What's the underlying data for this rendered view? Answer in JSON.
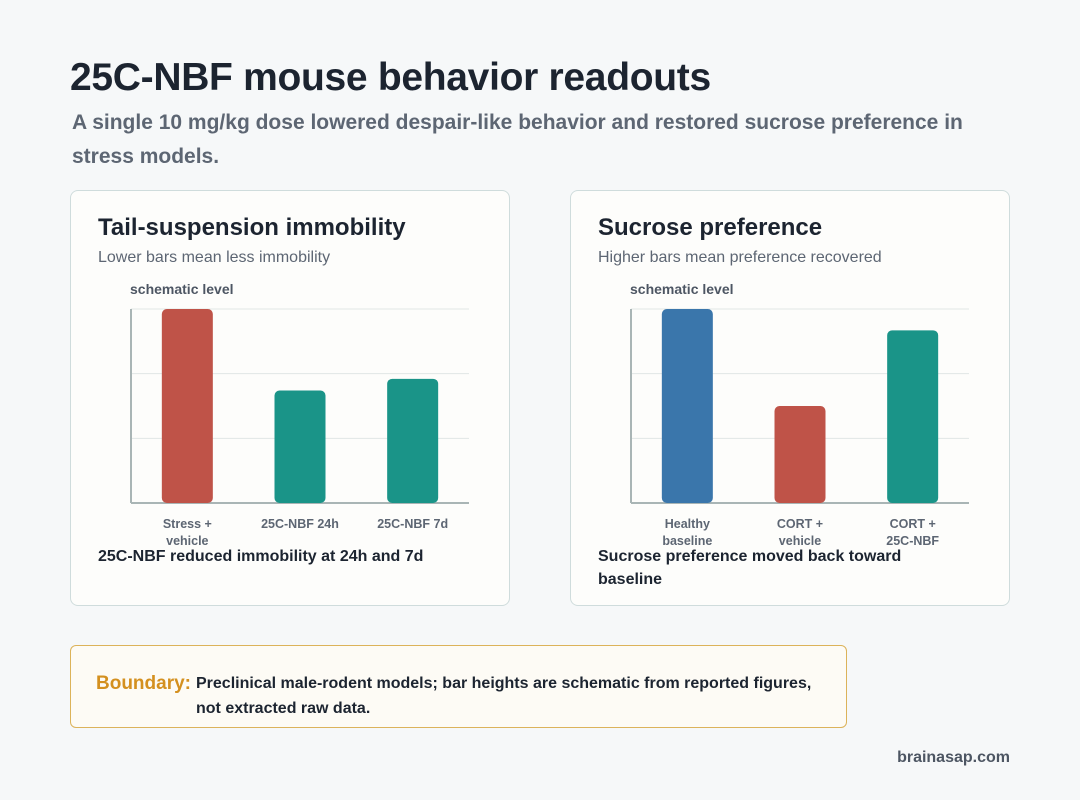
{
  "header": {
    "title": "25C-NBF mouse behavior readouts",
    "subtitle": "A single 10 mg/kg dose lowered despair-like behavior and restored sucrose preference in stress models."
  },
  "cards": [
    {
      "title": "Tail-suspension immobility",
      "subtitle": "Lower bars mean less immobility",
      "takeaway": "25C-NBF reduced immobility at 24h and 7d"
    },
    {
      "title": "Sucrose preference",
      "subtitle": "Higher bars mean preference recovered",
      "takeaway": "Sucrose preference moved back toward baseline"
    }
  ],
  "chart_data": [
    {
      "type": "bar",
      "title": "Tail-suspension immobility",
      "subtitle": "Lower bars mean less immobility",
      "ylabel": "schematic level",
      "categories": [
        "Stress + vehicle",
        "25C-NBF 24h",
        "25C-NBF 7d"
      ],
      "values": [
        100,
        58,
        64
      ],
      "colors": [
        "#bf5348",
        "#1a9488",
        "#1a9488"
      ],
      "ylim": [
        0,
        100
      ],
      "grid": true
    },
    {
      "type": "bar",
      "title": "Sucrose preference",
      "subtitle": "Higher bars mean preference recovered",
      "ylabel": "schematic level",
      "categories": [
        "Healthy baseline",
        "CORT + vehicle",
        "CORT + 25C-NBF"
      ],
      "values": [
        100,
        50,
        89
      ],
      "colors": [
        "#3a76ab",
        "#bf5348",
        "#1a9488"
      ],
      "ylim": [
        0,
        100
      ],
      "grid": true
    }
  ],
  "boundary": {
    "label": "Boundary:",
    "text": "Preclinical male-rodent models; bar heights are schematic from reported figures, not extracted raw data."
  },
  "footer": {
    "credit": "brainasap.com"
  },
  "colors": {
    "red": "#bf5348",
    "teal": "#1a9488",
    "blue": "#3a76ab",
    "accent": "#d4901f"
  }
}
